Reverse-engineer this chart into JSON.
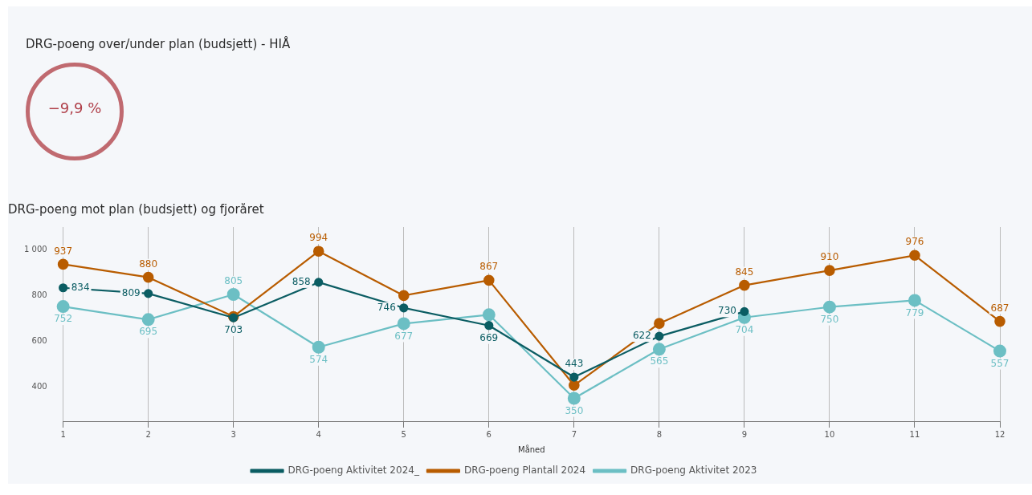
{
  "chart_data": [
    {
      "type": "other",
      "title": "DRG-poeng over/under plan (budsjett) - HIÅ",
      "annotations": [
        "−9,9 %"
      ]
    },
    {
      "type": "line",
      "title": "DRG-poeng mot plan (budsjett) og fjoråret",
      "xlabel": "Måned",
      "categories": [
        "1",
        "2",
        "3",
        "4",
        "5",
        "6",
        "7",
        "8",
        "9",
        "10",
        "11",
        "12"
      ],
      "series": [
        {
          "name": "DRG-poeng Aktivitet 2024_",
          "color": "#0b5d63",
          "values": [
            834,
            809,
            703,
            858,
            746,
            669,
            443,
            622,
            730,
            null,
            null,
            null
          ],
          "value_labels": [
            "834",
            "809",
            "703",
            "858",
            "746",
            "669",
            "443",
            "622",
            "730",
            null,
            null,
            null
          ]
        },
        {
          "name": "DRG-poeng Plantall 2024",
          "color": "#b85c00",
          "values": [
            937,
            880,
            708,
            994,
            800,
            867,
            407,
            678,
            845,
            910,
            976,
            687
          ],
          "value_labels": [
            "937",
            "880",
            null,
            "994",
            null,
            "867",
            null,
            null,
            "845",
            "910",
            "976",
            "687"
          ]
        },
        {
          "name": "DRG-poeng Aktivitet 2023",
          "color": "#6cbfc4",
          "values": [
            752,
            695,
            805,
            574,
            677,
            716,
            350,
            565,
            704,
            750,
            779,
            557
          ],
          "value_labels": [
            "752",
            "695",
            "805",
            "574",
            "677",
            null,
            "350",
            "565",
            "704",
            "750",
            "779",
            "557"
          ]
        }
      ],
      "ylim": [
        250,
        1100
      ],
      "yticks": [
        400,
        600,
        800,
        {
          "value": 1000,
          "label": "1 000"
        }
      ],
      "grid": "x",
      "legend": "bottom",
      "marker": "circle",
      "line_style": "solid"
    }
  ]
}
